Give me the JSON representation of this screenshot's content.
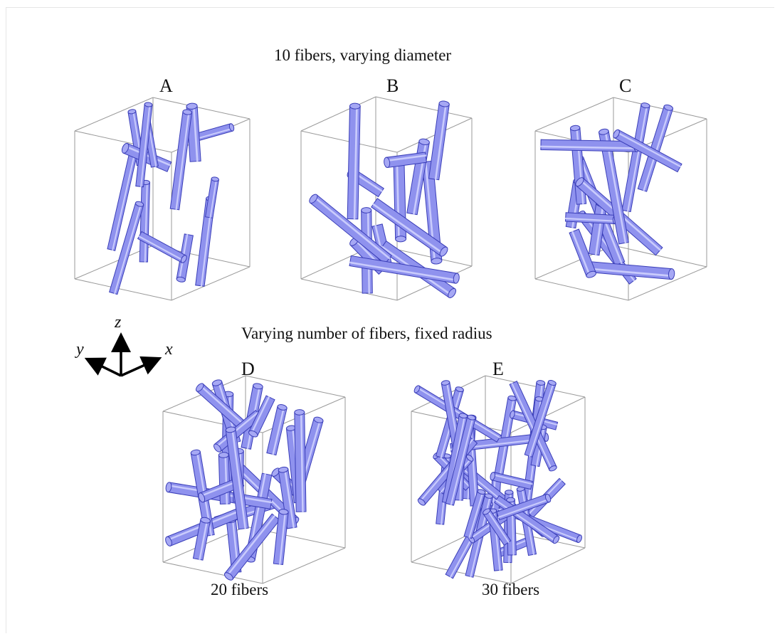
{
  "figure": {
    "top_heading": "10 fibers, varying diameter",
    "bottom_heading": "Varying number of fibers, fixed radius",
    "panels": [
      {
        "letter": "A",
        "caption": ""
      },
      {
        "letter": "B",
        "caption": ""
      },
      {
        "letter": "C",
        "caption": ""
      },
      {
        "letter": "D",
        "caption": "20 fibers"
      },
      {
        "letter": "E",
        "caption": "30 fibers"
      }
    ],
    "axes": {
      "x": "x",
      "y": "y",
      "z": "z"
    },
    "colors": {
      "fiber_fill": "#8f92ee",
      "fiber_stroke": "#3a3eb8",
      "fiber_highlight": "#d4d6ff",
      "box_edge": "#9a9a9a"
    }
  }
}
